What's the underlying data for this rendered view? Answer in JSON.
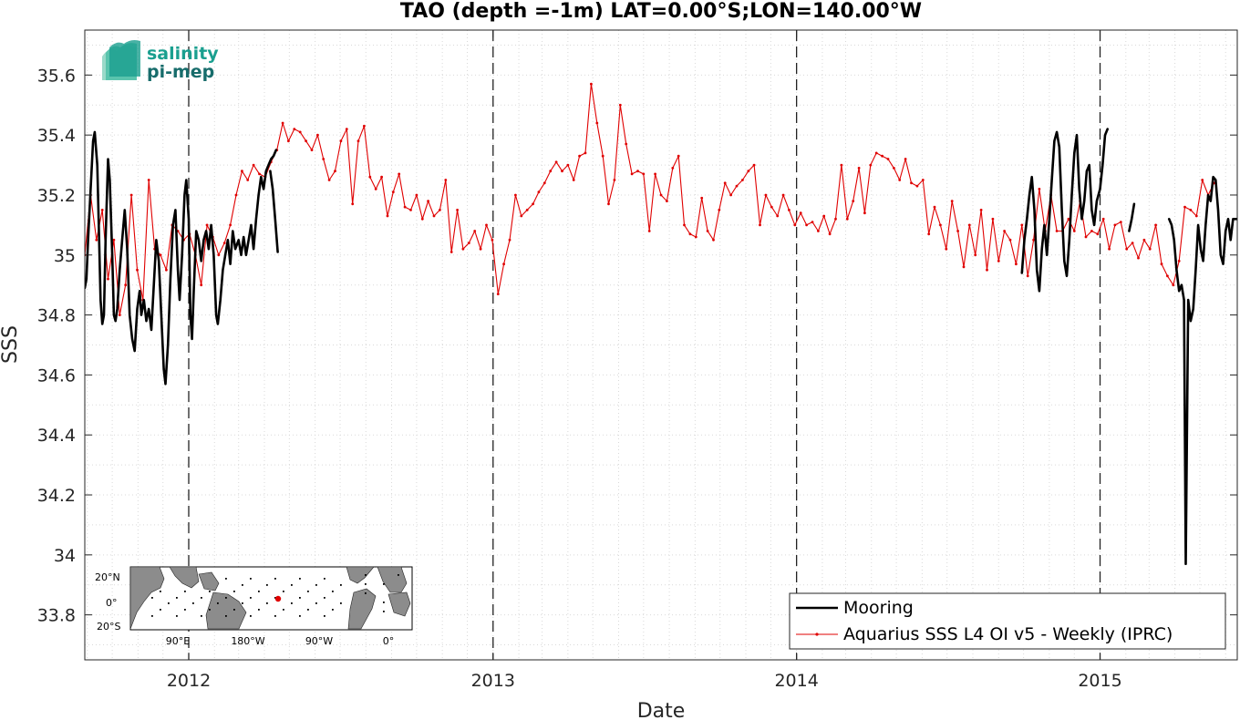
{
  "chart_data": {
    "type": "line",
    "title": "TAO (depth =-1m) LAT=0.00°S;LON=140.00°W",
    "xlabel": "Date",
    "ylabel": "SSS",
    "xlim": [
      "2011-08-29",
      "2015-06-15"
    ],
    "ylim": [
      33.65,
      35.75
    ],
    "yticks": [
      "33.8",
      "34",
      "34.2",
      "34.4",
      "34.6",
      "34.8",
      "35",
      "35.2",
      "35.4",
      "35.6"
    ],
    "xticks": [
      "2012",
      "2013",
      "2014",
      "2015"
    ],
    "grid": true,
    "legend_position": "bottom-right",
    "year_markers": [
      "2012-01-01",
      "2013-01-01",
      "2014-01-01",
      "2015-01-01"
    ],
    "series": [
      {
        "name": "Mooring",
        "color": "#000000",
        "style": "thick-line",
        "segments": [
          [
            [
              "2011-08-29",
              34.89
            ],
            [
              "2011-08-31",
              34.92
            ],
            [
              "2011-09-02",
              35.05
            ],
            [
              "2011-09-05",
              35.22
            ],
            [
              "2011-09-08",
              35.38
            ],
            [
              "2011-09-10",
              35.41
            ],
            [
              "2011-09-13",
              35.3
            ],
            [
              "2011-09-15",
              35.08
            ],
            [
              "2011-09-17",
              34.85
            ],
            [
              "2011-09-19",
              34.77
            ],
            [
              "2011-09-21",
              34.8
            ],
            [
              "2011-09-23",
              35.05
            ],
            [
              "2011-09-26",
              35.32
            ],
            [
              "2011-09-28",
              35.25
            ],
            [
              "2011-10-01",
              35.0
            ],
            [
              "2011-10-03",
              34.8
            ],
            [
              "2011-10-05",
              34.78
            ],
            [
              "2011-10-07",
              34.82
            ],
            [
              "2011-10-10",
              34.95
            ],
            [
              "2011-10-13",
              35.05
            ],
            [
              "2011-10-16",
              35.15
            ],
            [
              "2011-10-19",
              35.02
            ],
            [
              "2011-10-22",
              34.8
            ],
            [
              "2011-10-25",
              34.72
            ],
            [
              "2011-10-28",
              34.68
            ],
            [
              "2011-10-31",
              34.82
            ],
            [
              "2011-11-03",
              34.88
            ],
            [
              "2011-11-05",
              34.8
            ],
            [
              "2011-11-08",
              34.85
            ],
            [
              "2011-11-11",
              34.78
            ],
            [
              "2011-11-14",
              34.82
            ],
            [
              "2011-11-17",
              34.75
            ],
            [
              "2011-11-20",
              34.9
            ],
            [
              "2011-11-23",
              35.05
            ],
            [
              "2011-11-26",
              34.98
            ],
            [
              "2011-11-29",
              34.8
            ],
            [
              "2011-12-02",
              34.62
            ],
            [
              "2011-12-04",
              34.57
            ],
            [
              "2011-12-07",
              34.7
            ],
            [
              "2011-12-10",
              34.92
            ],
            [
              "2011-12-13",
              35.1
            ],
            [
              "2011-12-16",
              35.15
            ],
            [
              "2011-12-19",
              34.95
            ],
            [
              "2011-12-21",
              34.85
            ],
            [
              "2011-12-24",
              35.0
            ],
            [
              "2011-12-27",
              35.2
            ],
            [
              "2011-12-29",
              35.25
            ],
            [
              "2012-01-01",
              35.12
            ],
            [
              "2012-01-03",
              34.8
            ],
            [
              "2012-01-05",
              34.72
            ],
            [
              "2012-01-07",
              34.88
            ],
            [
              "2012-01-10",
              35.08
            ],
            [
              "2012-01-13",
              35.05
            ],
            [
              "2012-01-16",
              34.98
            ],
            [
              "2012-01-19",
              35.05
            ],
            [
              "2012-01-22",
              35.08
            ],
            [
              "2012-01-25",
              35.02
            ],
            [
              "2012-01-28",
              35.1
            ],
            [
              "2012-01-31",
              35.0
            ],
            [
              "2012-02-03",
              34.8
            ],
            [
              "2012-02-05",
              34.77
            ],
            [
              "2012-02-08",
              34.85
            ],
            [
              "2012-02-11",
              34.95
            ],
            [
              "2012-02-14",
              35.0
            ],
            [
              "2012-02-17",
              35.05
            ],
            [
              "2012-02-20",
              34.97
            ],
            [
              "2012-02-23",
              35.08
            ],
            [
              "2012-02-26",
              35.02
            ],
            [
              "2012-03-01",
              35.05
            ],
            [
              "2012-03-04",
              35.0
            ],
            [
              "2012-03-07",
              35.06
            ],
            [
              "2012-03-10",
              35.0
            ],
            [
              "2012-03-13",
              35.05
            ],
            [
              "2012-03-16",
              35.1
            ],
            [
              "2012-03-19",
              35.02
            ],
            [
              "2012-03-22",
              35.12
            ],
            [
              "2012-03-25",
              35.2
            ],
            [
              "2012-03-28",
              35.26
            ],
            [
              "2012-03-31",
              35.22
            ],
            [
              "2012-04-03",
              35.28
            ],
            [
              "2012-04-06",
              35.3
            ],
            [
              "2012-04-09",
              35.32
            ],
            [
              "2012-04-12",
              35.33
            ],
            [
              "2012-04-15",
              35.35
            ]
          ],
          [
            [
              "2012-04-08",
              35.28
            ],
            [
              "2012-04-11",
              35.22
            ],
            [
              "2012-04-14",
              35.12
            ],
            [
              "2012-04-17",
              35.01
            ]
          ],
          [
            [
              "2014-09-29",
              34.94
            ],
            [
              "2014-10-02",
              35.05
            ],
            [
              "2014-10-05",
              35.12
            ],
            [
              "2014-10-08",
              35.2
            ],
            [
              "2014-10-11",
              35.26
            ],
            [
              "2014-10-14",
              35.15
            ],
            [
              "2014-10-17",
              34.95
            ],
            [
              "2014-10-20",
              34.88
            ],
            [
              "2014-10-23",
              35.02
            ],
            [
              "2014-10-26",
              35.1
            ],
            [
              "2014-10-29",
              35.0
            ],
            [
              "2014-11-01",
              35.12
            ],
            [
              "2014-11-04",
              35.25
            ],
            [
              "2014-11-07",
              35.38
            ],
            [
              "2014-11-10",
              35.41
            ],
            [
              "2014-11-13",
              35.36
            ],
            [
              "2014-11-16",
              35.15
            ],
            [
              "2014-11-19",
              34.98
            ],
            [
              "2014-11-22",
              34.93
            ],
            [
              "2014-11-25",
              35.05
            ],
            [
              "2014-11-28",
              35.2
            ],
            [
              "2014-12-01",
              35.34
            ],
            [
              "2014-12-04",
              35.4
            ],
            [
              "2014-12-07",
              35.22
            ],
            [
              "2014-12-10",
              35.12
            ],
            [
              "2014-12-13",
              35.18
            ],
            [
              "2014-12-16",
              35.28
            ],
            [
              "2014-12-19",
              35.3
            ],
            [
              "2014-12-22",
              35.15
            ],
            [
              "2014-12-25",
              35.1
            ],
            [
              "2014-12-28",
              35.18
            ],
            [
              "2015-01-01",
              35.22
            ],
            [
              "2015-01-04",
              35.3
            ],
            [
              "2015-01-07",
              35.4
            ],
            [
              "2015-01-10",
              35.42
            ]
          ],
          [
            [
              "2015-02-05",
              35.08
            ],
            [
              "2015-02-08",
              35.12
            ],
            [
              "2015-02-11",
              35.17
            ]
          ],
          [
            [
              "2015-03-25",
              35.12
            ],
            [
              "2015-03-28",
              35.1
            ],
            [
              "2015-03-31",
              35.05
            ],
            [
              "2015-04-03",
              34.95
            ],
            [
              "2015-04-06",
              34.88
            ],
            [
              "2015-04-09",
              34.9
            ],
            [
              "2015-04-12",
              34.85
            ],
            [
              "2015-04-14",
              33.97
            ],
            [
              "2015-04-17",
              34.85
            ],
            [
              "2015-04-20",
              34.78
            ],
            [
              "2015-04-23",
              34.82
            ],
            [
              "2015-04-26",
              34.95
            ],
            [
              "2015-04-29",
              35.1
            ],
            [
              "2015-05-02",
              35.02
            ],
            [
              "2015-05-05",
              34.98
            ],
            [
              "2015-05-08",
              35.1
            ],
            [
              "2015-05-11",
              35.2
            ],
            [
              "2015-05-14",
              35.18
            ],
            [
              "2015-05-17",
              35.26
            ],
            [
              "2015-05-20",
              35.25
            ],
            [
              "2015-05-23",
              35.15
            ],
            [
              "2015-05-26",
              35.0
            ],
            [
              "2015-05-29",
              34.97
            ],
            [
              "2015-06-01",
              35.08
            ],
            [
              "2015-06-04",
              35.12
            ],
            [
              "2015-06-07",
              35.05
            ],
            [
              "2015-06-10",
              35.12
            ],
            [
              "2015-06-14",
              35.12
            ]
          ]
        ]
      },
      {
        "name": "Aquarius SSS L4 OI v5 - Weekly (IPRC)",
        "color": "#e00000",
        "style": "thin-line-with-dots",
        "weekly_start": "2011-08-29",
        "weekly_values": [
          35.0,
          35.2,
          35.05,
          35.15,
          34.92,
          35.05,
          34.8,
          34.9,
          35.2,
          34.95,
          34.85,
          35.25,
          35.02,
          35.0,
          34.95,
          35.1,
          35.08,
          35.05,
          35.07,
          35.0,
          34.9,
          35.1,
          35.06,
          35.0,
          35.04,
          35.1,
          35.2,
          35.28,
          35.25,
          35.3,
          35.27,
          35.26,
          35.31,
          35.35,
          35.44,
          35.38,
          35.42,
          35.41,
          35.38,
          35.35,
          35.4,
          35.32,
          35.25,
          35.28,
          35.38,
          35.42,
          35.17,
          35.38,
          35.43,
          35.26,
          35.22,
          35.26,
          35.13,
          35.21,
          35.27,
          35.16,
          35.15,
          35.2,
          35.12,
          35.18,
          35.13,
          35.15,
          35.25,
          35.01,
          35.15,
          35.02,
          35.04,
          35.08,
          35.02,
          35.1,
          35.05,
          34.87,
          34.97,
          35.05,
          35.2,
          35.13,
          35.15,
          35.17,
          35.21,
          35.24,
          35.28,
          35.31,
          35.28,
          35.3,
          35.25,
          35.33,
          35.34,
          35.57,
          35.44,
          35.33,
          35.17,
          35.25,
          35.5,
          35.37,
          35.27,
          35.28,
          35.27,
          35.08,
          35.27,
          35.2,
          35.18,
          35.29,
          35.33,
          35.1,
          35.07,
          35.06,
          35.19,
          35.08,
          35.05,
          35.15,
          35.24,
          35.2,
          35.23,
          35.25,
          35.28,
          35.3,
          35.1,
          35.2,
          35.16,
          35.13,
          35.2,
          35.15,
          35.1,
          35.14,
          35.1,
          35.11,
          35.08,
          35.13,
          35.07,
          35.12,
          35.3,
          35.12,
          35.18,
          35.29,
          35.14,
          35.3,
          35.34,
          35.33,
          35.32,
          35.29,
          35.25,
          35.32,
          35.24,
          35.23,
          35.25,
          35.07,
          35.16,
          35.1,
          35.02,
          35.18,
          35.08,
          34.96,
          35.1,
          35.0,
          35.15,
          34.95,
          35.12,
          34.98,
          35.08,
          35.05,
          34.97,
          35.1,
          34.93,
          35.05,
          35.22,
          35.08,
          35.2,
          35.08,
          35.08,
          35.12,
          35.08,
          35.18,
          35.06,
          35.08,
          35.07,
          35.12,
          35.02,
          35.1,
          35.11,
          35.02,
          35.04,
          34.99,
          35.05,
          35.02,
          35.1,
          34.97,
          34.93,
          34.9,
          34.98,
          35.16,
          35.15,
          35.13,
          35.25,
          35.2,
          35.24
        ]
      }
    ],
    "inset_map": {
      "lat_ticks": [
        "20°N",
        "0°",
        "20°S"
      ],
      "lon_ticks": [
        "90°E",
        "180°W",
        "90°W",
        "0°"
      ],
      "marker_color": "#e00000"
    }
  },
  "logo": {
    "line1": "salinity",
    "line2": "pi-mep"
  }
}
